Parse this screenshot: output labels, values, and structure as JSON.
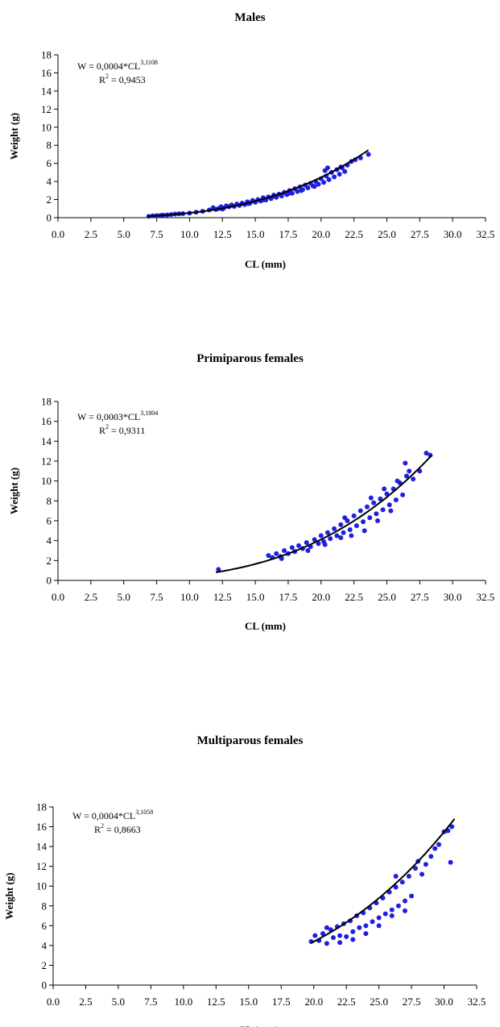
{
  "chart_data": [
    {
      "type": "scatter",
      "title": "Males",
      "xlabel": "CL (mm)",
      "ylabel": "Weight (g)",
      "xlim": [
        0,
        32.5
      ],
      "ylim": [
        0,
        18
      ],
      "x_ticks": [
        "0.0",
        "2.5",
        "5.0",
        "7.5",
        "10.0",
        "12.5",
        "15.0",
        "17.5",
        "20.0",
        "22.5",
        "25.0",
        "27.5",
        "30.0",
        "32.5"
      ],
      "y_ticks": [
        "0",
        "2",
        "4",
        "6",
        "8",
        "10",
        "12",
        "14",
        "16",
        "18"
      ],
      "equation": {
        "prefix": "W = 0,0004*CL",
        "exponent": "3,1108",
        "r2_prefix": "R",
        "r2_exp": "2",
        "r2_value": " = 0,9453"
      },
      "trendline": {
        "a": 0.0004,
        "b": 3.1108,
        "x_range": [
          6.8,
          23.6
        ]
      },
      "point_color": "#1f1fe0",
      "points": [
        [
          6.9,
          0.15
        ],
        [
          7.2,
          0.2
        ],
        [
          7.5,
          0.22
        ],
        [
          7.8,
          0.25
        ],
        [
          8.0,
          0.28
        ],
        [
          8.3,
          0.3
        ],
        [
          8.6,
          0.35
        ],
        [
          8.9,
          0.4
        ],
        [
          9.2,
          0.42
        ],
        [
          9.5,
          0.45
        ],
        [
          10.0,
          0.5
        ],
        [
          10.5,
          0.6
        ],
        [
          11.0,
          0.7
        ],
        [
          11.5,
          0.85
        ],
        [
          11.8,
          1.1
        ],
        [
          12.0,
          0.9
        ],
        [
          12.2,
          1.0
        ],
        [
          12.4,
          1.2
        ],
        [
          12.6,
          1.05
        ],
        [
          12.8,
          1.3
        ],
        [
          13.0,
          1.2
        ],
        [
          13.2,
          1.4
        ],
        [
          13.4,
          1.25
        ],
        [
          13.6,
          1.5
        ],
        [
          13.8,
          1.35
        ],
        [
          14.0,
          1.6
        ],
        [
          14.2,
          1.45
        ],
        [
          14.4,
          1.75
        ],
        [
          14.6,
          1.6
        ],
        [
          14.8,
          1.9
        ],
        [
          15.0,
          1.7
        ],
        [
          15.2,
          2.0
        ],
        [
          15.4,
          1.85
        ],
        [
          15.6,
          2.2
        ],
        [
          15.8,
          1.95
        ],
        [
          16.0,
          2.3
        ],
        [
          16.2,
          2.1
        ],
        [
          16.4,
          2.5
        ],
        [
          16.6,
          2.25
        ],
        [
          16.8,
          2.6
        ],
        [
          17.0,
          2.4
        ],
        [
          17.2,
          2.8
        ],
        [
          17.4,
          2.55
        ],
        [
          17.6,
          3.0
        ],
        [
          17.8,
          2.7
        ],
        [
          18.0,
          3.2
        ],
        [
          18.2,
          2.9
        ],
        [
          18.4,
          3.4
        ],
        [
          18.6,
          3.1
        ],
        [
          18.8,
          3.6
        ],
        [
          19.0,
          3.3
        ],
        [
          19.2,
          3.8
        ],
        [
          19.4,
          3.5
        ],
        [
          19.6,
          4.0
        ],
        [
          19.8,
          3.7
        ],
        [
          20.0,
          4.3
        ],
        [
          20.2,
          3.9
        ],
        [
          20.4,
          4.6
        ],
        [
          20.6,
          4.2
        ],
        [
          20.8,
          5.0
        ],
        [
          21.0,
          4.5
        ],
        [
          21.2,
          5.3
        ],
        [
          21.4,
          4.8
        ],
        [
          21.6,
          5.5
        ],
        [
          21.8,
          5.1
        ],
        [
          22.0,
          5.8
        ],
        [
          22.3,
          6.2
        ],
        [
          22.6,
          6.4
        ],
        [
          23.0,
          6.6
        ],
        [
          23.6,
          7.0
        ],
        [
          12.5,
          0.95
        ],
        [
          14.5,
          1.55
        ],
        [
          16.5,
          2.35
        ],
        [
          18.5,
          3.0
        ],
        [
          19.5,
          3.45
        ],
        [
          20.5,
          5.5
        ],
        [
          20.3,
          5.2
        ],
        [
          21.5,
          5.6
        ],
        [
          17.5,
          2.65
        ],
        [
          15.5,
          1.9
        ]
      ]
    },
    {
      "type": "scatter",
      "title": "Primiparous females",
      "xlabel": "CL (mm)",
      "ylabel": "Weight (g)",
      "xlim": [
        0,
        32.5
      ],
      "ylim": [
        0,
        18
      ],
      "x_ticks": [
        "0.0",
        "2.5",
        "5.0",
        "7.5",
        "10.0",
        "12.5",
        "15.0",
        "17.5",
        "20.0",
        "22.5",
        "25.0",
        "27.5",
        "30.0",
        "32.5"
      ],
      "y_ticks": [
        "0",
        "2",
        "4",
        "6",
        "8",
        "10",
        "12",
        "14",
        "16",
        "18"
      ],
      "equation": {
        "prefix": "W = 0,0003*CL",
        "exponent": "3,1804",
        "r2_prefix": "R",
        "r2_exp": "2",
        "r2_value": " = 0,9311"
      },
      "trendline": {
        "a": 0.0003,
        "b": 3.1804,
        "x_range": [
          12.0,
          28.4
        ]
      },
      "point_color": "#1f1fe0",
      "points": [
        [
          12.2,
          1.1
        ],
        [
          16.0,
          2.5
        ],
        [
          16.3,
          2.3
        ],
        [
          16.6,
          2.7
        ],
        [
          16.9,
          2.4
        ],
        [
          17.2,
          3.0
        ],
        [
          17.5,
          2.7
        ],
        [
          17.8,
          3.3
        ],
        [
          18.0,
          2.9
        ],
        [
          18.3,
          3.5
        ],
        [
          18.6,
          3.2
        ],
        [
          18.9,
          3.8
        ],
        [
          19.2,
          3.4
        ],
        [
          19.5,
          4.1
        ],
        [
          19.8,
          3.7
        ],
        [
          20.0,
          4.5
        ],
        [
          20.2,
          3.9
        ],
        [
          20.5,
          4.8
        ],
        [
          20.7,
          4.2
        ],
        [
          21.0,
          5.2
        ],
        [
          21.2,
          4.5
        ],
        [
          21.5,
          5.6
        ],
        [
          21.7,
          4.8
        ],
        [
          22.0,
          6.0
        ],
        [
          22.2,
          5.1
        ],
        [
          22.5,
          6.5
        ],
        [
          22.7,
          5.5
        ],
        [
          23.0,
          7.0
        ],
        [
          23.2,
          5.9
        ],
        [
          23.5,
          7.4
        ],
        [
          23.7,
          6.3
        ],
        [
          24.0,
          7.8
        ],
        [
          24.2,
          6.7
        ],
        [
          24.5,
          8.2
        ],
        [
          24.7,
          7.1
        ],
        [
          25.0,
          8.7
        ],
        [
          25.2,
          7.6
        ],
        [
          25.5,
          9.2
        ],
        [
          25.7,
          8.1
        ],
        [
          26.0,
          9.8
        ],
        [
          26.2,
          8.6
        ],
        [
          26.5,
          10.5
        ],
        [
          26.7,
          11.0
        ],
        [
          26.4,
          11.8
        ],
        [
          27.0,
          10.2
        ],
        [
          27.5,
          11.0
        ],
        [
          28.0,
          12.8
        ],
        [
          28.3,
          12.6
        ],
        [
          21.5,
          4.3
        ],
        [
          22.3,
          4.5
        ],
        [
          23.3,
          5.0
        ],
        [
          24.3,
          6.0
        ],
        [
          25.3,
          7.0
        ],
        [
          19.0,
          3.0
        ],
        [
          20.3,
          3.6
        ],
        [
          21.8,
          6.3
        ],
        [
          23.8,
          8.3
        ],
        [
          24.8,
          9.2
        ],
        [
          25.8,
          10.0
        ],
        [
          17.0,
          2.2
        ]
      ]
    },
    {
      "type": "scatter",
      "title": "Multiparous females",
      "xlabel": "CL (mm)",
      "ylabel": "Weight (g)",
      "xlim": [
        0,
        32.5
      ],
      "ylim": [
        0,
        18
      ],
      "x_ticks": [
        "0.0",
        "2.5",
        "5.0",
        "7.5",
        "10.0",
        "12.5",
        "15.0",
        "17.5",
        "20.0",
        "22.5",
        "25.0",
        "27.5",
        "30.0",
        "32.5"
      ],
      "y_ticks": [
        "0",
        "2",
        "4",
        "6",
        "8",
        "10",
        "12",
        "14",
        "16",
        "18"
      ],
      "equation": {
        "prefix": "W = 0,0004*CL",
        "exponent": "3,1058",
        "r2_prefix": "R",
        "r2_exp": "2",
        "r2_value": " = 0,8663"
      },
      "trendline": {
        "a": 0.0004,
        "b": 3.1058,
        "x_range": [
          19.8,
          30.8
        ]
      },
      "point_color": "#1f1fe0",
      "points": [
        [
          19.8,
          4.4
        ],
        [
          20.1,
          5.0
        ],
        [
          20.4,
          4.5
        ],
        [
          20.7,
          5.2
        ],
        [
          21.0,
          4.2
        ],
        [
          21.3,
          5.6
        ],
        [
          21.5,
          4.8
        ],
        [
          21.8,
          5.9
        ],
        [
          22.0,
          5.0
        ],
        [
          22.3,
          6.2
        ],
        [
          22.5,
          4.9
        ],
        [
          22.8,
          6.5
        ],
        [
          23.0,
          5.4
        ],
        [
          23.3,
          7.0
        ],
        [
          23.5,
          5.8
        ],
        [
          23.8,
          7.3
        ],
        [
          24.0,
          6.0
        ],
        [
          24.3,
          7.8
        ],
        [
          24.5,
          6.4
        ],
        [
          24.8,
          8.3
        ],
        [
          25.0,
          6.8
        ],
        [
          25.3,
          8.8
        ],
        [
          25.5,
          7.2
        ],
        [
          25.8,
          9.4
        ],
        [
          26.0,
          7.6
        ],
        [
          26.3,
          9.9
        ],
        [
          26.5,
          8.0
        ],
        [
          26.8,
          10.4
        ],
        [
          27.0,
          8.5
        ],
        [
          27.3,
          11.0
        ],
        [
          27.5,
          9.0
        ],
        [
          27.8,
          11.8
        ],
        [
          28.0,
          12.5
        ],
        [
          28.3,
          11.2
        ],
        [
          28.6,
          12.2
        ],
        [
          29.0,
          13.0
        ],
        [
          29.3,
          13.8
        ],
        [
          29.6,
          14.2
        ],
        [
          30.0,
          15.5
        ],
        [
          30.3,
          15.6
        ],
        [
          30.6,
          16.0
        ],
        [
          30.5,
          12.4
        ],
        [
          22.0,
          4.3
        ],
        [
          23.0,
          4.6
        ],
        [
          24.0,
          5.2
        ],
        [
          25.0,
          6.0
        ],
        [
          26.0,
          7.0
        ],
        [
          27.0,
          7.5
        ],
        [
          21.0,
          5.8
        ],
        [
          26.3,
          11.0
        ]
      ]
    }
  ]
}
